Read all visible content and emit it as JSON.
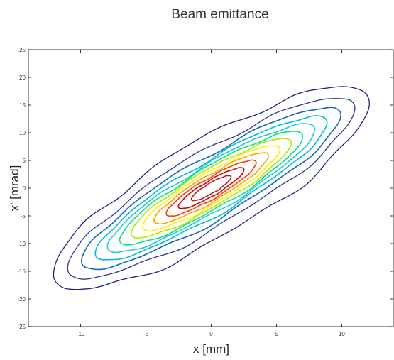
{
  "chart_data": {
    "type": "contour",
    "title": "Beam emittance",
    "xlabel": "x [mm]",
    "ylabel": "x' [mrad]",
    "xlim": [
      -14,
      14
    ],
    "ylim": [
      -25,
      25
    ],
    "xticks": [
      -10,
      -5,
      0,
      5,
      10
    ],
    "yticks": [
      -25,
      -20,
      -15,
      -10,
      -5,
      0,
      5,
      10,
      15,
      20,
      25
    ],
    "grid": false,
    "colormap": "jet",
    "distribution": {
      "center": [
        0,
        0
      ],
      "major_axis_end_points": [
        [
          -10.7,
          -14.3
        ],
        [
          13.2,
          19.2
        ]
      ],
      "slope_mrad_per_mm": 1.44
    },
    "contour_levels": [
      {
        "level": 1,
        "color": "#1a237e",
        "semi_major": 20.6,
        "semi_minor": 1.5
      },
      {
        "level": 2,
        "color": "#283593",
        "semi_major": 18.8,
        "semi_minor": 1.15
      },
      {
        "level": 3,
        "color": "#1565c0",
        "semi_major": 17.0,
        "semi_minor": 0.95
      },
      {
        "level": 4,
        "color": "#00bcd4",
        "semi_major": 15.2,
        "semi_minor": 0.82
      },
      {
        "level": 5,
        "color": "#26c6da",
        "semi_major": 13.6,
        "semi_minor": 0.72
      },
      {
        "level": 6,
        "color": "#00e676",
        "semi_major": 12.0,
        "semi_minor": 0.64
      },
      {
        "level": 7,
        "color": "#aeea00",
        "semi_major": 10.5,
        "semi_minor": 0.56
      },
      {
        "level": 8,
        "color": "#ffee00",
        "semi_major": 9.0,
        "semi_minor": 0.48
      },
      {
        "level": 9,
        "color": "#ffa000",
        "semi_major": 7.5,
        "semi_minor": 0.4
      },
      {
        "level": 10,
        "color": "#ff3d00",
        "semi_major": 5.9,
        "semi_minor": 0.32
      },
      {
        "level": 11,
        "color": "#d50000",
        "semi_major": 4.3,
        "semi_minor": 0.24
      },
      {
        "level": 12,
        "color": "#b71c1c",
        "semi_major": 2.6,
        "semi_minor": 0.16
      }
    ]
  }
}
